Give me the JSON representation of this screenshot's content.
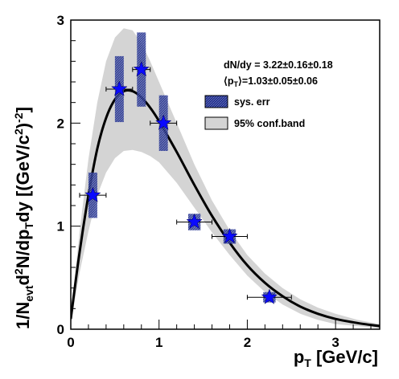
{
  "chart_data": {
    "type": "scatter",
    "xlabel": "p_T [GeV/c]",
    "ylabel": "1/N_evt d^2N/dp_T dy [(GeV/c^2)^-2]",
    "xlim": [
      0,
      3.5
    ],
    "ylim": [
      0,
      3
    ],
    "x_ticks": [
      "0",
      "1",
      "2",
      "3"
    ],
    "y_ticks": [
      "0",
      "1",
      "2",
      "3"
    ],
    "grid": false,
    "legend_position": "top-right",
    "annotations": {
      "dndy": "dN/dy = 3.22±0.16±0.18",
      "meanpt_open": "⟨p",
      "meanpt_sub": "T",
      "meanpt_close": "⟩=1.03±0.05±0.06"
    },
    "legend": [
      {
        "label": "sys. err",
        "kind": "sys"
      },
      {
        "label": "95% conf.band",
        "kind": "band"
      }
    ],
    "points": [
      {
        "x": 0.25,
        "y": 1.3,
        "xerr": 0.15,
        "sys_dy": 0.22,
        "sys_dx": 0.05
      },
      {
        "x": 0.55,
        "y": 2.33,
        "xerr": 0.15,
        "sys_dy": 0.32,
        "sys_dx": 0.05
      },
      {
        "x": 0.8,
        "y": 2.52,
        "xerr": 0.1,
        "sys_dy": 0.36,
        "sys_dx": 0.05
      },
      {
        "x": 1.05,
        "y": 2.0,
        "xerr": 0.15,
        "sys_dy": 0.27,
        "sys_dx": 0.05
      },
      {
        "x": 1.4,
        "y": 1.04,
        "xerr": 0.2,
        "sys_dy": 0.08,
        "sys_dx": 0.07
      },
      {
        "x": 1.8,
        "y": 0.9,
        "xerr": 0.2,
        "sys_dy": 0.07,
        "sys_dx": 0.07
      },
      {
        "x": 2.25,
        "y": 0.31,
        "xerr": 0.25,
        "sys_dy": 0.05,
        "sys_dx": 0.07
      }
    ],
    "fit_curve": {
      "x": [
        0,
        0.1,
        0.2,
        0.3,
        0.4,
        0.5,
        0.6,
        0.7,
        0.8,
        0.9,
        1.0,
        1.2,
        1.4,
        1.6,
        1.8,
        2.0,
        2.2,
        2.4,
        2.6,
        2.8,
        3.0,
        3.25,
        3.5
      ],
      "y": [
        0.1,
        0.75,
        1.3,
        1.75,
        2.05,
        2.23,
        2.31,
        2.31,
        2.25,
        2.15,
        2.02,
        1.72,
        1.4,
        1.1,
        0.84,
        0.62,
        0.45,
        0.32,
        0.22,
        0.15,
        0.1,
        0.06,
        0.03
      ]
    },
    "conf_band": {
      "x": [
        0,
        0.1,
        0.2,
        0.3,
        0.4,
        0.5,
        0.6,
        0.7,
        0.8,
        0.9,
        1.0,
        1.2,
        1.4,
        1.6,
        1.8,
        2.0,
        2.2,
        2.4,
        2.6,
        2.8,
        3.0,
        3.25,
        3.5
      ],
      "upper": [
        0.15,
        0.95,
        1.65,
        2.2,
        2.6,
        2.83,
        2.92,
        2.9,
        2.78,
        2.6,
        2.4,
        2.0,
        1.6,
        1.25,
        0.96,
        0.72,
        0.54,
        0.4,
        0.29,
        0.21,
        0.15,
        0.09,
        0.05
      ],
      "lower": [
        0.05,
        0.55,
        0.95,
        1.3,
        1.52,
        1.66,
        1.73,
        1.74,
        1.72,
        1.68,
        1.62,
        1.42,
        1.18,
        0.94,
        0.72,
        0.52,
        0.36,
        0.24,
        0.15,
        0.09,
        0.05,
        0.03,
        0.01
      ]
    },
    "colors": {
      "marker": "#0a0aff",
      "sys_box": "#1c2a8c",
      "band": "#d4d4d4",
      "curve": "#000000"
    }
  }
}
